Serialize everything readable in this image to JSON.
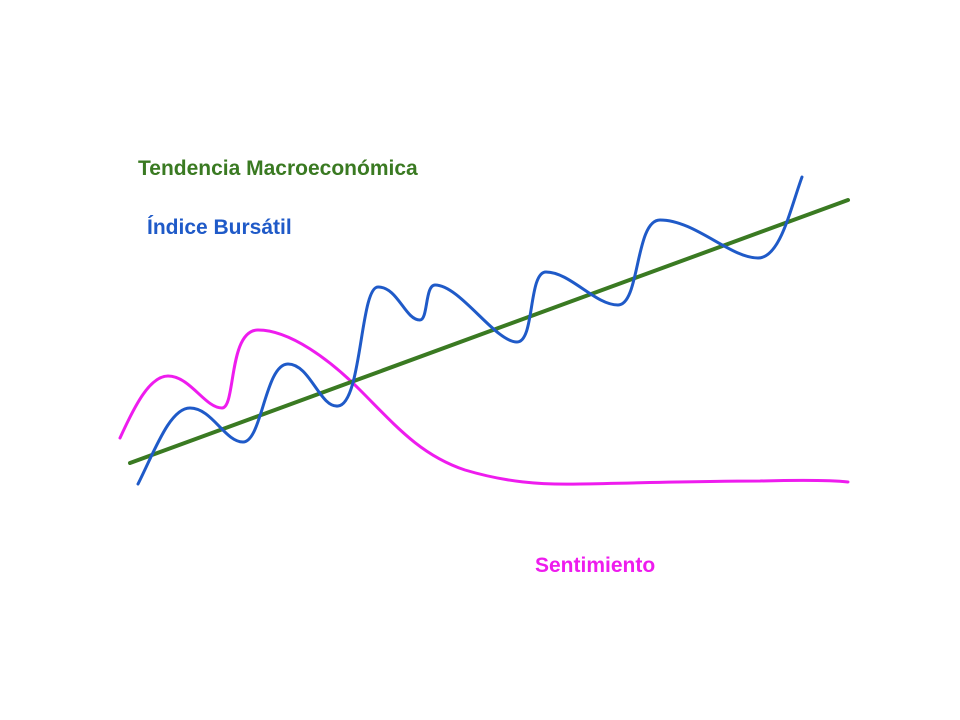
{
  "labels": {
    "trend": "Tendencia Macroeconómica",
    "index": "Índice Bursátil",
    "sentiment": "Sentimiento"
  }
}
